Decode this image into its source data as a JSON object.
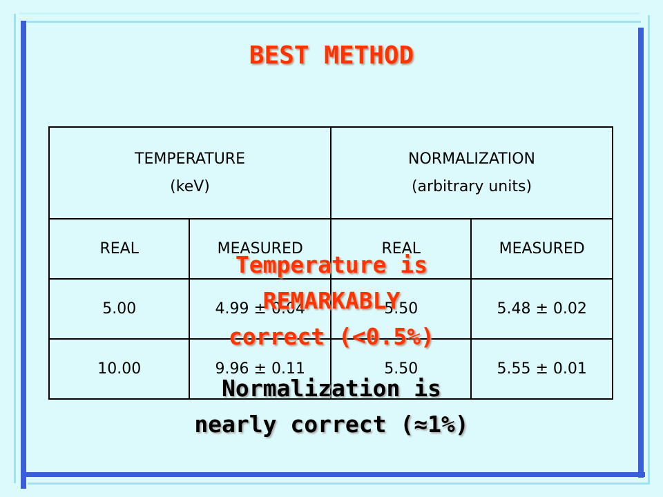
{
  "title": "BEST METHOD",
  "table": {
    "header": [
      [
        "TEMPERATURE",
        "(keV)"
      ],
      [
        "NORMALIZATION",
        "(arbitrary units)"
      ]
    ],
    "subheader": [
      "REAL",
      "MEASURED",
      "REAL",
      "MEASURED"
    ],
    "rows": [
      [
        "5.00",
        "4.99 ± 0.04",
        "5.50",
        "5.48 ± 0.02"
      ],
      [
        "10.00",
        "9.96 ± 0.11",
        "5.50",
        "5.55 ± 0.01"
      ]
    ]
  },
  "notes": [
    {
      "lines": [
        "Temperature is",
        "REMARKABLY",
        "correct (<0.5%)"
      ]
    },
    {
      "lines": [
        "Normalization is",
        "nearly correct (≈1%)"
      ]
    }
  ]
}
